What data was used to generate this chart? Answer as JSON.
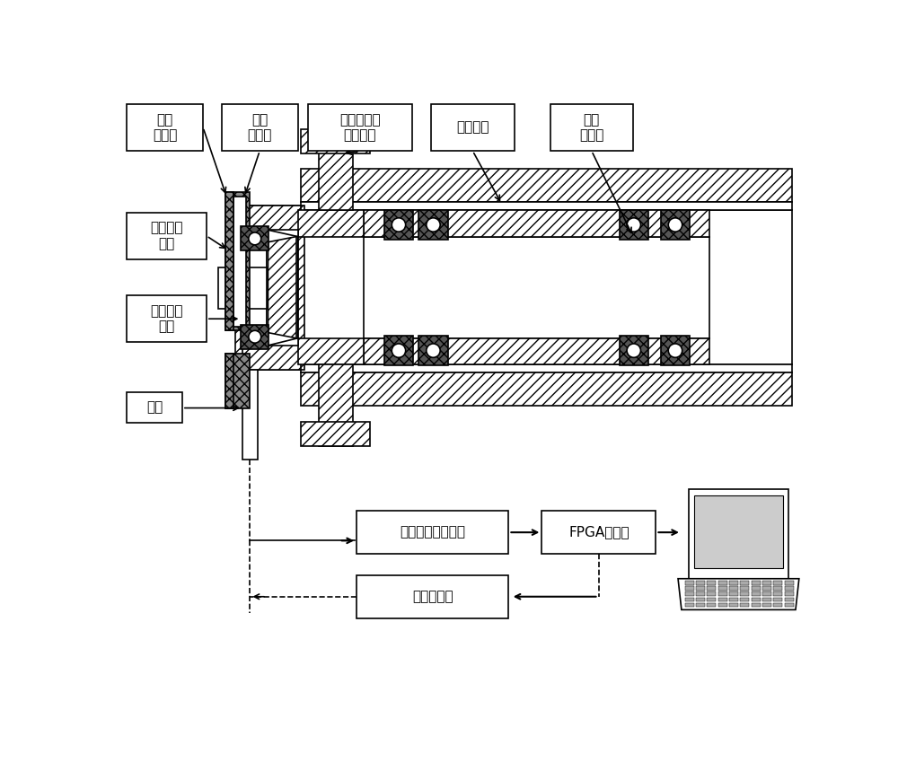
{
  "fig_width": 10.0,
  "fig_height": 8.49,
  "bg_color": "#ffffff",
  "labels": {
    "piezo_actuator": "压电\n作动器",
    "displacement_sensor": "位移\n传感器",
    "piezo_bracket": "压电作动器\n连接支架",
    "spindle_base": "主轴基座",
    "high_speed_spindle": "高速\n电主轴",
    "accel_sensor": "加速度传\n感器",
    "angular_bearing": "角接触球\n轴承",
    "tool_holder": "刀柄",
    "data_acq": "数据采集与分析仪",
    "fpga": "FPGA控制器",
    "power_amp": "功率放大器"
  }
}
